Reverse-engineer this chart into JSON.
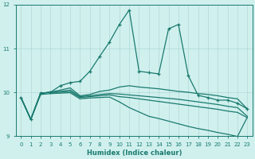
{
  "xlabel": "Humidex (Indice chaleur)",
  "xlim": [
    -0.5,
    23.5
  ],
  "ylim": [
    9,
    12
  ],
  "yticks": [
    9,
    10,
    11,
    12
  ],
  "xticks": [
    0,
    1,
    2,
    3,
    4,
    5,
    6,
    7,
    8,
    9,
    10,
    11,
    12,
    13,
    14,
    15,
    16,
    17,
    18,
    19,
    20,
    21,
    22,
    23
  ],
  "background_color": "#d0f0ee",
  "grid_color": "#b0d8d5",
  "line_color": "#1a7a6e",
  "series": [
    {
      "y": [
        9.88,
        9.38,
        9.98,
        10.0,
        10.15,
        10.22,
        10.25,
        10.48,
        10.82,
        11.15,
        11.55,
        11.88,
        10.48,
        10.45,
        10.42,
        11.45,
        11.55,
        10.38,
        9.93,
        9.88,
        9.82,
        9.82,
        9.75,
        9.62
      ],
      "marker": true
    },
    {
      "y": [
        9.88,
        9.38,
        9.98,
        10.0,
        10.05,
        10.1,
        9.92,
        9.95,
        10.02,
        10.05,
        10.12,
        10.15,
        10.12,
        10.1,
        10.08,
        10.05,
        10.02,
        10.0,
        9.97,
        9.95,
        9.92,
        9.88,
        9.85,
        9.62
      ],
      "marker": false
    },
    {
      "y": [
        9.88,
        9.38,
        9.98,
        10.0,
        10.02,
        10.05,
        9.9,
        9.92,
        9.95,
        9.97,
        9.96,
        9.94,
        9.92,
        9.9,
        9.88,
        9.86,
        9.84,
        9.81,
        9.78,
        9.75,
        9.72,
        9.68,
        9.65,
        9.45
      ],
      "marker": false
    },
    {
      "y": [
        9.88,
        9.38,
        9.98,
        10.0,
        10.0,
        10.02,
        9.88,
        9.9,
        9.92,
        9.94,
        9.9,
        9.88,
        9.85,
        9.82,
        9.79,
        9.76,
        9.73,
        9.7,
        9.67,
        9.64,
        9.61,
        9.57,
        9.54,
        9.42
      ],
      "marker": false
    },
    {
      "y": [
        9.88,
        9.38,
        9.95,
        9.97,
        9.98,
        9.99,
        9.85,
        9.87,
        9.88,
        9.89,
        9.78,
        9.65,
        9.55,
        9.45,
        9.4,
        9.34,
        9.28,
        9.22,
        9.17,
        9.13,
        9.08,
        9.04,
        8.99,
        9.43
      ],
      "marker": false
    }
  ]
}
